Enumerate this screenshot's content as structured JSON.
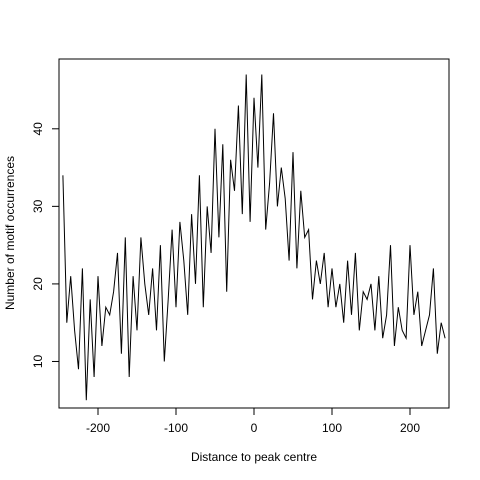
{
  "chart_data": {
    "type": "line",
    "title": "",
    "xlabel": "Distance to peak centre",
    "ylabel": "Number of motif occurrences",
    "xlim": [
      -250,
      250
    ],
    "ylim": [
      4,
      49
    ],
    "x_ticks": [
      -200,
      -100,
      0,
      100,
      200
    ],
    "y_ticks": [
      10,
      20,
      30,
      40
    ],
    "grid": false,
    "legend": "none",
    "color": "#000000",
    "series": [
      {
        "x": [
          -245,
          -240,
          -235,
          -230,
          -225,
          -220,
          -215,
          -210,
          -205,
          -200,
          -195,
          -190,
          -185,
          -180,
          -175,
          -170,
          -165,
          -160,
          -155,
          -150,
          -145,
          -140,
          -135,
          -130,
          -125,
          -120,
          -115,
          -110,
          -105,
          -100,
          -95,
          -90,
          -85,
          -80,
          -75,
          -70,
          -65,
          -60,
          -55,
          -50,
          -45,
          -40,
          -35,
          -30,
          -25,
          -20,
          -15,
          -10,
          -5,
          0,
          5,
          10,
          15,
          20,
          25,
          30,
          35,
          40,
          45,
          50,
          55,
          60,
          65,
          70,
          75,
          80,
          85,
          90,
          95,
          100,
          105,
          110,
          115,
          120,
          125,
          130,
          135,
          140,
          145,
          150,
          155,
          160,
          165,
          170,
          175,
          180,
          185,
          190,
          195,
          200,
          205,
          210,
          215,
          220,
          225,
          230,
          235,
          240,
          245
        ],
        "y": [
          34,
          15,
          21,
          14,
          9,
          22,
          5,
          18,
          8,
          21,
          12,
          17,
          16,
          19,
          24,
          11,
          26,
          8,
          21,
          14,
          26,
          20,
          16,
          22,
          14,
          25,
          10,
          18,
          27,
          17,
          28,
          23,
          16,
          29,
          20,
          34,
          17,
          30,
          24,
          40,
          26,
          38,
          19,
          36,
          32,
          43,
          29,
          47,
          28,
          44,
          35,
          47,
          27,
          33,
          42,
          30,
          35,
          31,
          23,
          37,
          22,
          32,
          26,
          27,
          18,
          23,
          20,
          24,
          17,
          22,
          17,
          20,
          15,
          23,
          16,
          24,
          14,
          19,
          18,
          20,
          14,
          21,
          13,
          16,
          25,
          12,
          17,
          14,
          13,
          25,
          16,
          19,
          12,
          14,
          16,
          22,
          11,
          15,
          13
        ]
      }
    ]
  }
}
